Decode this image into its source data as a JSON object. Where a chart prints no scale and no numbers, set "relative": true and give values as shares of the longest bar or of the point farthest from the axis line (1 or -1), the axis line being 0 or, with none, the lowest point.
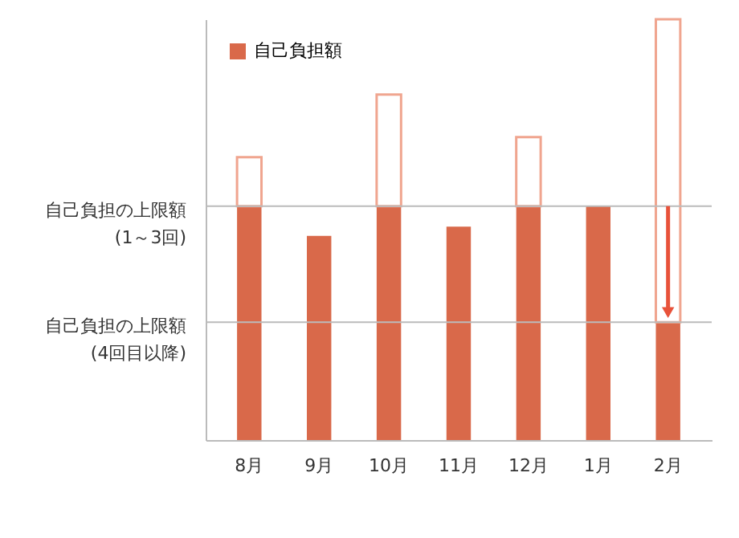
{
  "chart_data": {
    "type": "bar",
    "relative": true,
    "stacked": true,
    "categories": [
      "8月",
      "9月",
      "10月",
      "11月",
      "12月",
      "1月",
      "2月"
    ],
    "series": [
      {
        "name": "自己負担額",
        "color": "#d9694a",
        "values": [
          0.556,
          0.485,
          0.556,
          0.507,
          0.556,
          0.556,
          0.28
        ]
      },
      {
        "color": "#f0a58f",
        "values": [
          0.116,
          null,
          0.265,
          null,
          0.164,
          null,
          0.72
        ]
      }
    ],
    "ref_lines": [
      {
        "axis": "y",
        "value": 0.556,
        "label": "自己負担の上限額 (1～3回)",
        "color": "#bbbbbb"
      },
      {
        "axis": "y",
        "value": 0.28,
        "label": "自己負担の上限額 (4回目以降)",
        "color": "#bbbbbb"
      }
    ],
    "legend": "top left",
    "grid": false
  }
}
